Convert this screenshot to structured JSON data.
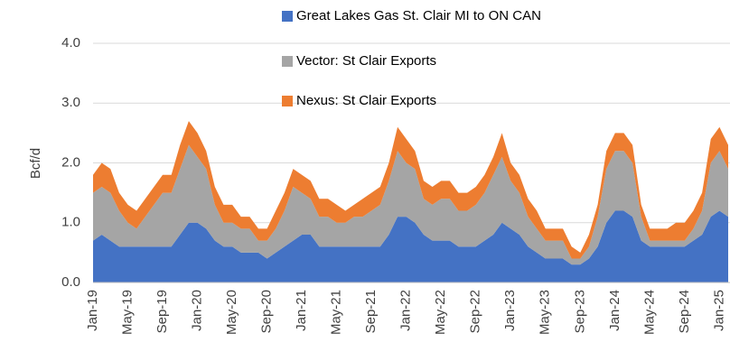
{
  "chart_data": {
    "type": "stacked_area",
    "y_label": "Bcf/d",
    "categories": [
      "Jan-19",
      null,
      null,
      null,
      "May-19",
      null,
      null,
      null,
      "Sep-19",
      null,
      null,
      null,
      "Jan-20",
      null,
      null,
      null,
      "May-20",
      null,
      null,
      null,
      "Sep-20",
      null,
      null,
      null,
      "Jan-21",
      null,
      null,
      null,
      "May-21",
      null,
      null,
      null,
      "Sep-21",
      null,
      null,
      null,
      "Jan-22",
      null,
      null,
      null,
      "May-22",
      null,
      null,
      null,
      "Sep-22",
      null,
      null,
      null,
      "Jan-23",
      null,
      null,
      null,
      "May-23",
      null,
      null,
      null,
      "Sep-23",
      null,
      null,
      null,
      "Jan-24",
      null,
      null,
      null,
      "May-24",
      null,
      null,
      null,
      "Sep-24",
      null,
      null,
      null,
      "Jan-25",
      null
    ],
    "series": [
      {
        "name": "Great Lakes Gas St. Clair MI to ON CAN",
        "color": "#4472c4",
        "values": [
          0.7,
          0.8,
          0.7,
          0.6,
          0.6,
          0.6,
          0.6,
          0.6,
          0.6,
          0.6,
          0.8,
          1.0,
          1.0,
          0.9,
          0.7,
          0.6,
          0.6,
          0.5,
          0.5,
          0.5,
          0.4,
          0.5,
          0.6,
          0.7,
          0.8,
          0.8,
          0.6,
          0.6,
          0.6,
          0.6,
          0.6,
          0.6,
          0.6,
          0.6,
          0.8,
          1.1,
          1.1,
          1.0,
          0.8,
          0.7,
          0.7,
          0.7,
          0.6,
          0.6,
          0.6,
          0.7,
          0.8,
          1.0,
          0.9,
          0.8,
          0.6,
          0.5,
          0.4,
          0.4,
          0.4,
          0.3,
          0.3,
          0.4,
          0.6,
          1.0,
          1.2,
          1.2,
          1.1,
          0.7,
          0.6,
          0.6,
          0.6,
          0.6,
          0.6,
          0.7,
          0.8,
          1.1,
          1.2,
          1.1
        ]
      },
      {
        "name": "Vector: St Clair Exports",
        "color": "#a5a5a5",
        "values": [
          0.8,
          0.8,
          0.8,
          0.6,
          0.4,
          0.3,
          0.5,
          0.7,
          0.9,
          0.9,
          1.1,
          1.3,
          1.1,
          1.0,
          0.6,
          0.4,
          0.4,
          0.4,
          0.4,
          0.2,
          0.3,
          0.4,
          0.6,
          0.9,
          0.7,
          0.6,
          0.5,
          0.5,
          0.4,
          0.4,
          0.5,
          0.5,
          0.6,
          0.7,
          0.9,
          1.1,
          0.9,
          0.9,
          0.6,
          0.6,
          0.7,
          0.7,
          0.6,
          0.6,
          0.7,
          0.8,
          1.0,
          1.1,
          0.8,
          0.7,
          0.5,
          0.4,
          0.3,
          0.3,
          0.3,
          0.1,
          0.1,
          0.2,
          0.5,
          0.9,
          1.0,
          1.0,
          0.9,
          0.4,
          0.1,
          0.1,
          0.1,
          0.1,
          0.1,
          0.2,
          0.4,
          0.9,
          1.0,
          0.8
        ]
      },
      {
        "name": "Nexus: St Clair Exports",
        "color": "#ed7d31",
        "values": [
          0.3,
          0.4,
          0.4,
          0.3,
          0.3,
          0.3,
          0.3,
          0.3,
          0.3,
          0.3,
          0.4,
          0.4,
          0.4,
          0.3,
          0.3,
          0.3,
          0.3,
          0.2,
          0.2,
          0.2,
          0.2,
          0.3,
          0.3,
          0.3,
          0.3,
          0.3,
          0.3,
          0.3,
          0.3,
          0.2,
          0.2,
          0.3,
          0.3,
          0.3,
          0.3,
          0.4,
          0.4,
          0.3,
          0.3,
          0.3,
          0.3,
          0.3,
          0.3,
          0.3,
          0.3,
          0.3,
          0.3,
          0.4,
          0.3,
          0.3,
          0.3,
          0.3,
          0.2,
          0.2,
          0.2,
          0.2,
          0.1,
          0.2,
          0.2,
          0.3,
          0.3,
          0.3,
          0.3,
          0.2,
          0.2,
          0.2,
          0.2,
          0.3,
          0.3,
          0.3,
          0.3,
          0.4,
          0.4,
          0.4
        ]
      }
    ],
    "ylim": [
      0,
      4
    ],
    "yticks": [
      {
        "value": 0,
        "label": "0.0"
      },
      {
        "value": 1,
        "label": "1.0"
      },
      {
        "value": 2,
        "label": "2.0"
      },
      {
        "value": 3,
        "label": "3.0"
      },
      {
        "value": 4,
        "label": "4.0"
      }
    ],
    "grid": true,
    "legend": "top"
  }
}
